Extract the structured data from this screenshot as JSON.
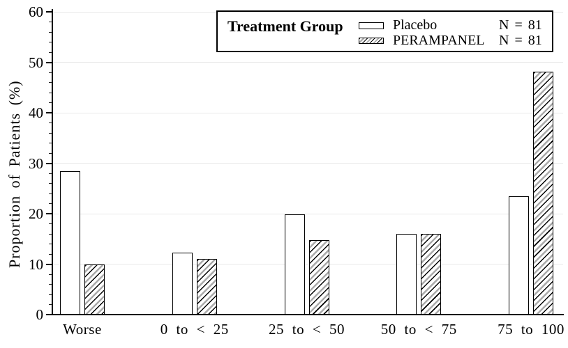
{
  "chart_data": {
    "type": "bar",
    "title": "",
    "xlabel": "",
    "ylabel": "Proportion of Patients (%)",
    "categories": [
      "Worse",
      "0 to < 25",
      "25 to < 50",
      "50 to < 75",
      "75 to 100"
    ],
    "series": [
      {
        "name": "Placebo",
        "n_label": "N = 81",
        "fill": "plain",
        "values": [
          28.4,
          12.3,
          19.8,
          16.0,
          23.5
        ]
      },
      {
        "name": "PERAMPANEL",
        "n_label": "N = 81",
        "fill": "hatched",
        "values": [
          9.9,
          11.1,
          14.8,
          16.0,
          48.1
        ]
      }
    ],
    "legend": {
      "title": "Treatment Group",
      "position": "top-right"
    },
    "ylim": [
      0,
      60
    ],
    "yticks": [
      0,
      10,
      20,
      30,
      40,
      50,
      60
    ],
    "minor_tick_step": 2,
    "grid": "horizontal-major",
    "colors": {
      "bar_outline": "#000000",
      "hatch_gray": "#aaaaaa",
      "gridline": "#e9e9e9",
      "background": "#ffffff"
    }
  }
}
